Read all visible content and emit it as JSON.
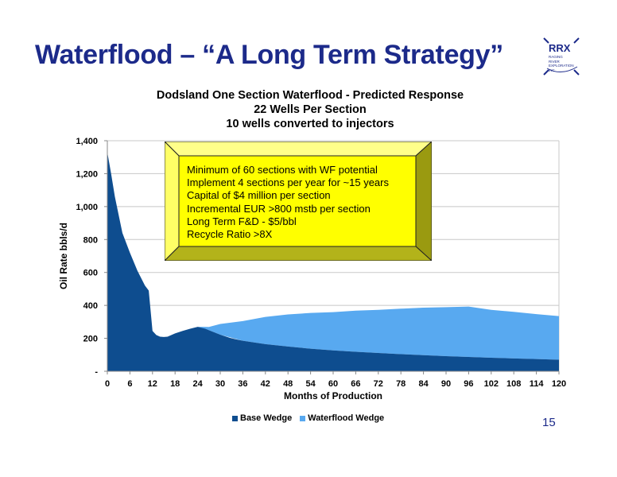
{
  "slide": {
    "title": "Waterflood – “A Long Term Strategy”",
    "page_number": "15"
  },
  "logo": {
    "letters": "RRX",
    "subtext": "Raging River Exploration Inc."
  },
  "callout": {
    "lines": [
      "Minimum of 60 sections with WF potential",
      "Implement 4 sections per year for ~15 years",
      "Capital of $4 million per section",
      "Incremental EUR >800 mstb per section",
      "Long Term F&D - $5/bbl",
      "Recycle Ratio >8X"
    ]
  },
  "chart_data": {
    "type": "area",
    "stacked": true,
    "title": [
      "Dodsland One Section Waterflood -  Predicted Response",
      "22 Wells Per Section",
      "10 wells converted to injectors"
    ],
    "xlabel": "Months of Production",
    "ylabel": "Oil Rate bbls/d",
    "xlim": [
      0,
      120
    ],
    "ylim": [
      0,
      1400
    ],
    "x_ticks": [
      0,
      6,
      12,
      18,
      24,
      30,
      36,
      42,
      48,
      54,
      60,
      66,
      72,
      78,
      84,
      90,
      96,
      102,
      108,
      114,
      120
    ],
    "y_ticks": [
      0,
      200,
      400,
      600,
      800,
      1000,
      1200,
      1400
    ],
    "y_tick_labels": [
      "-",
      "200",
      "400",
      "600",
      "800",
      "1,000",
      "1,200",
      "1,400"
    ],
    "grid": "horizontal",
    "legend_position": "bottom",
    "series": [
      {
        "name": "Base Wedge",
        "color": "#0e4d8f",
        "x": [
          0,
          1,
          2,
          4,
          6,
          8,
          10,
          11,
          12,
          13,
          14,
          15,
          16,
          18,
          20,
          22,
          24,
          26,
          28,
          30,
          33,
          36,
          42,
          48,
          54,
          60,
          66,
          72,
          78,
          84,
          90,
          96,
          102,
          108,
          114,
          120
        ],
        "values": [
          1330,
          1200,
          1060,
          840,
          720,
          610,
          520,
          490,
          245,
          220,
          210,
          208,
          210,
          230,
          245,
          258,
          270,
          258,
          240,
          222,
          200,
          185,
          165,
          150,
          137,
          127,
          118,
          111,
          104,
          98,
          92,
          87,
          82,
          78,
          74,
          70
        ]
      },
      {
        "name": "Waterflood Wedge",
        "color": "#58a9f0",
        "x": [
          24,
          27,
          30,
          36,
          42,
          48,
          54,
          60,
          66,
          72,
          78,
          84,
          90,
          96,
          102,
          108,
          114,
          120
        ],
        "values": [
          0,
          20,
          65,
          120,
          165,
          195,
          217,
          232,
          250,
          262,
          276,
          288,
          297,
          306,
          291,
          283,
          273,
          265
        ]
      }
    ]
  }
}
